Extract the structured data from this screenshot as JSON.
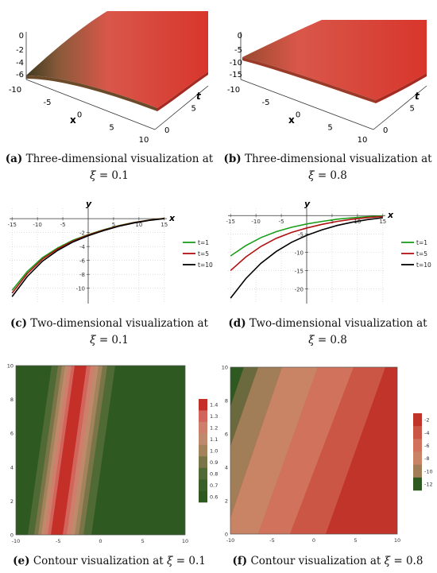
{
  "figure": {
    "panels": [
      {
        "id": "a",
        "label": "(a)",
        "caption_line1": "Three-dimensional visualization at",
        "xi_symbol": "ξ",
        "xi_value": "= 0.1"
      },
      {
        "id": "b",
        "label": "(b)",
        "caption_line1": "Three-dimensional visualization at",
        "xi_symbol": "ξ",
        "xi_value": "= 0.8"
      },
      {
        "id": "c",
        "label": "(c)",
        "caption_line1": "Two-dimensional visualization at",
        "xi_symbol": "ξ",
        "xi_value": "= 0.1"
      },
      {
        "id": "d",
        "label": "(d)",
        "caption_line1": "Two-dimensional visualization at",
        "xi_symbol": "ξ",
        "xi_value": "= 0.8"
      },
      {
        "id": "e",
        "label": "(e)",
        "caption_line1": "Contour visualization at",
        "xi_symbol": "ξ",
        "xi_value": "= 0.1"
      },
      {
        "id": "f",
        "label": "(f)",
        "caption_line1": "Contour visualization at",
        "xi_symbol": "ξ",
        "xi_value": "= 0.8"
      }
    ]
  },
  "chart_data": [
    {
      "panel": "a",
      "type": "surface",
      "axis_labels": {
        "x": "x",
        "t": "t"
      },
      "x_ticks": [
        "-10",
        "-5",
        "0",
        "5",
        "10"
      ],
      "t_ticks": [
        "0",
        "5",
        "10"
      ],
      "z_ticks": [
        "0",
        "-2",
        "-4",
        "-6"
      ]
    },
    {
      "panel": "b",
      "type": "surface",
      "axis_labels": {
        "x": "x",
        "t": "t"
      },
      "x_ticks": [
        "-10",
        "-5",
        "0",
        "5",
        "10"
      ],
      "t_ticks": [
        "0",
        "5",
        "10"
      ],
      "z_ticks": [
        "0",
        "-5",
        "-10",
        "-15"
      ]
    },
    {
      "panel": "c",
      "type": "line",
      "xlabel": "x",
      "ylabel": "y",
      "x_ticks": [
        -15,
        -10,
        -5,
        0,
        5,
        10,
        15
      ],
      "y_ticks": [
        -2,
        -4,
        -6,
        -8,
        -10
      ],
      "xlim": [
        -15.5,
        15.5
      ],
      "ylim": [
        -12.2,
        1.5
      ],
      "series": [
        {
          "name": "t=1",
          "color": "#1a9e1a",
          "x": [
            -15,
            -12,
            -9,
            -6,
            -3,
            0,
            3,
            6,
            9,
            12,
            15
          ],
          "y": [
            -10.3,
            -7.6,
            -5.6,
            -4.2,
            -3.1,
            -2.3,
            -1.6,
            -1.0,
            -0.55,
            -0.2,
            0.05
          ]
        },
        {
          "name": "t=5",
          "color": "#b01010",
          "x": [
            -15,
            -12,
            -9,
            -6,
            -3,
            0,
            3,
            6,
            9,
            12,
            15
          ],
          "y": [
            -10.7,
            -7.9,
            -5.8,
            -4.35,
            -3.2,
            -2.35,
            -1.65,
            -1.05,
            -0.58,
            -0.22,
            0.03
          ]
        },
        {
          "name": "t=10",
          "color": "#000000",
          "x": [
            -15,
            -12,
            -9,
            -6,
            -3,
            0,
            3,
            6,
            9,
            12,
            15
          ],
          "y": [
            -11.2,
            -8.3,
            -6.1,
            -4.55,
            -3.35,
            -2.45,
            -1.72,
            -1.1,
            -0.62,
            -0.25,
            0.0
          ]
        }
      ]
    },
    {
      "panel": "d",
      "type": "line",
      "xlabel": "x",
      "ylabel": "y",
      "x_ticks": [
        -15,
        -10,
        -5,
        0,
        5,
        10,
        15
      ],
      "y_ticks": [
        -5,
        -10,
        -15,
        -20
      ],
      "xlim": [
        -15.5,
        15.5
      ],
      "ylim": [
        -24,
        2
      ],
      "series": [
        {
          "name": "t=1",
          "color": "#1a9e1a",
          "x": [
            -15,
            -12,
            -9,
            -6,
            -3,
            0,
            3,
            6,
            9,
            12,
            15
          ],
          "y": [
            -11,
            -8.2,
            -6.0,
            -4.4,
            -3.2,
            -2.3,
            -1.6,
            -1.0,
            -0.6,
            -0.3,
            -0.1
          ]
        },
        {
          "name": "t=5",
          "color": "#b01010",
          "x": [
            -15,
            -12,
            -9,
            -6,
            -3,
            0,
            3,
            6,
            9,
            12,
            15
          ],
          "y": [
            -15,
            -11.3,
            -8.4,
            -6.2,
            -4.6,
            -3.4,
            -2.4,
            -1.6,
            -1.0,
            -0.55,
            -0.25
          ]
        },
        {
          "name": "t=10",
          "color": "#000000",
          "x": [
            -15,
            -12,
            -9,
            -6,
            -3,
            0,
            3,
            6,
            9,
            12,
            15
          ],
          "y": [
            -22.5,
            -17.2,
            -13.0,
            -9.8,
            -7.3,
            -5.4,
            -3.9,
            -2.7,
            -1.8,
            -1.1,
            -0.6
          ]
        }
      ]
    },
    {
      "panel": "e",
      "type": "contour",
      "x_ticks": [
        -10,
        -5,
        0,
        5,
        10
      ],
      "y_ticks": [
        0,
        2,
        4,
        6,
        8,
        10
      ],
      "colorbar_ticks": [
        "1.4",
        "1.3",
        "1.2",
        "1.1",
        "1.0",
        "0.9",
        "0.8",
        "0.7",
        "0.6"
      ]
    },
    {
      "panel": "f",
      "type": "contour",
      "x_ticks": [
        -10,
        -5,
        0,
        5,
        10
      ],
      "y_ticks": [
        0,
        2,
        4,
        6,
        8,
        10
      ],
      "colorbar_ticks": [
        "-2",
        "-4",
        "-6",
        "-8",
        "-10",
        "-12"
      ]
    }
  ]
}
